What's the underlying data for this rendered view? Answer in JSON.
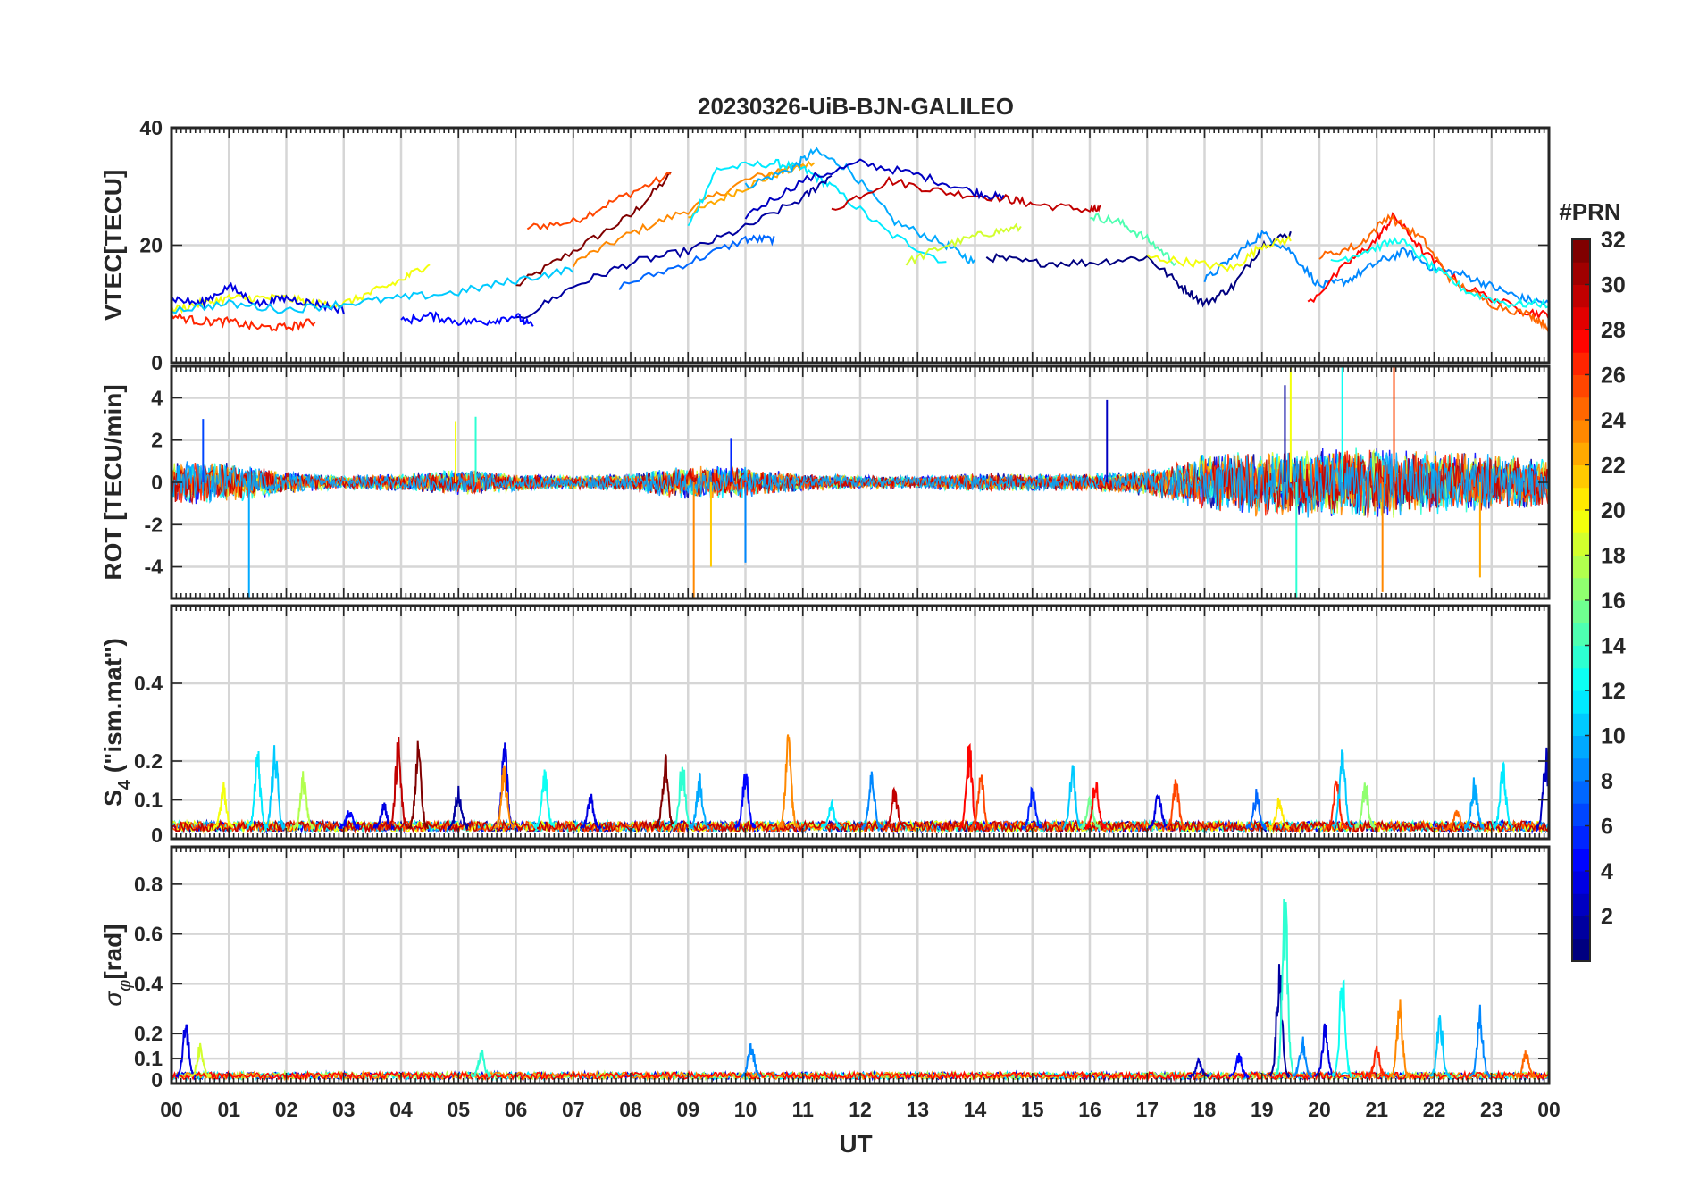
{
  "figure": {
    "title": "20230326-UiB-BJN-GALILEO",
    "xlabel": "UT",
    "x_tick_labels": [
      "00",
      "01",
      "02",
      "03",
      "04",
      "05",
      "06",
      "07",
      "08",
      "09",
      "10",
      "11",
      "12",
      "13",
      "14",
      "15",
      "16",
      "17",
      "18",
      "19",
      "20",
      "21",
      "22",
      "23",
      "00"
    ]
  },
  "colorbar": {
    "title": "#PRN",
    "colormap": "jet",
    "levels": 32,
    "range": [
      1,
      32
    ],
    "tick_values": [
      2,
      4,
      6,
      8,
      10,
      12,
      14,
      16,
      18,
      20,
      22,
      24,
      26,
      28,
      30,
      32
    ],
    "tick_labels": [
      "2",
      "4",
      "6",
      "8",
      "10",
      "12",
      "14",
      "16",
      "18",
      "20",
      "22",
      "24",
      "26",
      "28",
      "30",
      "32"
    ]
  },
  "chart_data": [
    {
      "type": "line",
      "panel": "vtec",
      "ylabel": "VTEC[TECU]",
      "xlim": [
        0,
        24
      ],
      "ylim": [
        0,
        40
      ],
      "yticks": [
        0,
        20,
        40
      ],
      "ytick_labels": [
        "0",
        "20",
        "40"
      ],
      "grid": true,
      "series": [
        {
          "prn": 32,
          "x": [
            6.0,
            7.0,
            8.0,
            8.7
          ],
          "y": [
            13,
            19,
            25,
            32
          ]
        },
        {
          "prn": 26,
          "x": [
            6.2,
            7.0,
            7.8,
            8.7
          ],
          "y": [
            23,
            24,
            28,
            32
          ]
        },
        {
          "prn": 24,
          "x": [
            7.0,
            8.0,
            9.0,
            10.0,
            11.0
          ],
          "y": [
            17,
            22,
            26,
            31,
            34
          ]
        },
        {
          "prn": 23,
          "x": [
            9.0,
            9.8,
            10.5,
            11.2
          ],
          "y": [
            25,
            29,
            32,
            34
          ]
        },
        {
          "prn": 12,
          "x": [
            9.0,
            9.5,
            10.5,
            11.0,
            11.5,
            12.5,
            13.5
          ],
          "y": [
            23,
            33,
            34,
            33,
            30,
            22,
            17
          ]
        },
        {
          "prn": 10,
          "x": [
            10.0,
            10.8,
            11.2,
            11.8,
            12.6,
            13.5,
            14.0
          ],
          "y": [
            30,
            33,
            36,
            33,
            24,
            20,
            17
          ]
        },
        {
          "prn": 30,
          "x": [
            11.5,
            12.5,
            13.5,
            14.5,
            15.0,
            16.0,
            16.2
          ],
          "y": [
            26,
            31,
            29,
            28,
            27,
            26,
            26
          ]
        },
        {
          "prn": 3,
          "x": [
            10.0,
            11.0,
            12.0,
            13.0,
            14.0,
            14.5
          ],
          "y": [
            25,
            31,
            34,
            32,
            29,
            28
          ]
        },
        {
          "prn": 8,
          "x": [
            7.8,
            9.0,
            10.0,
            10.5
          ],
          "y": [
            13,
            17,
            21,
            21
          ]
        },
        {
          "prn": 2,
          "x": [
            6.0,
            7.0,
            8.0,
            9.0,
            10.0,
            11.0,
            11.5
          ],
          "y": [
            7,
            13,
            17,
            19,
            23,
            28,
            32
          ]
        },
        {
          "prn": 19,
          "x": [
            12.8,
            13.5,
            14.2,
            14.8
          ],
          "y": [
            17,
            20,
            22,
            23
          ]
        },
        {
          "prn": 1,
          "x": [
            14.2,
            15.0,
            16.0,
            17.0,
            17.6,
            18.0,
            18.5,
            19.0,
            19.5
          ],
          "y": [
            18,
            17,
            17,
            18,
            13,
            10,
            13,
            20,
            22
          ]
        },
        {
          "prn": 15,
          "x": [
            16.0,
            16.5,
            17.0,
            17.5
          ],
          "y": [
            25,
            24,
            21,
            17
          ]
        },
        {
          "prn": 9,
          "x": [
            18.0,
            18.5,
            19.0,
            19.5,
            20.0,
            20.5,
            21.0,
            21.5,
            22.0,
            22.5,
            23.0,
            23.5,
            24.0
          ],
          "y": [
            14,
            18,
            22,
            19,
            13,
            14,
            17,
            19,
            16,
            15,
            13,
            11,
            10
          ]
        },
        {
          "prn": 20,
          "x": [
            17.0,
            17.8,
            18.5,
            19.0,
            19.5
          ],
          "y": [
            18,
            17,
            16,
            20,
            21
          ]
        },
        {
          "prn": 28,
          "x": [
            19.8,
            20.5,
            21.0,
            21.3,
            21.8,
            22.5,
            23.5,
            24.0
          ],
          "y": [
            10,
            17,
            21,
            25,
            19,
            13,
            9,
            8
          ]
        },
        {
          "prn": 25,
          "x": [
            20.0,
            20.7,
            21.2,
            21.8,
            22.3,
            23.0,
            23.7,
            24.0
          ],
          "y": [
            18,
            20,
            25,
            21,
            14,
            10,
            8,
            6
          ]
        },
        {
          "prn": 13,
          "x": [
            20.2,
            20.8,
            21.4,
            22.0,
            22.6,
            23.3,
            24.0
          ],
          "y": [
            17,
            19,
            21,
            16,
            12,
            10,
            10
          ]
        },
        {
          "prn": 20,
          "x": [
            0.0,
            0.5,
            1.0,
            1.5,
            2.0,
            2.5,
            3.0,
            3.5,
            4.0,
            4.5
          ],
          "y": [
            9,
            10,
            11,
            11,
            11,
            10,
            10,
            12,
            14,
            17
          ]
        },
        {
          "prn": 4,
          "x": [
            0.0,
            0.5,
            1.0,
            1.5,
            2.0,
            2.5,
            3.0
          ],
          "y": [
            11,
            10,
            13,
            10,
            11,
            10,
            9
          ]
        },
        {
          "prn": 27,
          "x": [
            0.0,
            0.5,
            1.0,
            1.5,
            2.0,
            2.5
          ],
          "y": [
            8,
            7,
            7,
            6,
            6,
            7
          ]
        },
        {
          "prn": 11,
          "x": [
            0.0,
            1.0,
            2.0,
            3.0,
            4.0,
            5.0,
            6.0,
            7.0
          ],
          "y": [
            9,
            10,
            9,
            10,
            11,
            12,
            14,
            16
          ]
        },
        {
          "prn": 5,
          "x": [
            4.0,
            4.5,
            5.0,
            5.5,
            6.0,
            6.3
          ],
          "y": [
            7,
            8,
            7,
            7,
            8,
            6
          ]
        }
      ]
    },
    {
      "type": "line",
      "panel": "rot",
      "ylabel": "ROT [TECU/min]",
      "xlim": [
        0,
        24
      ],
      "ylim": [
        -5.5,
        5.5
      ],
      "yticks": [
        -4,
        -2,
        0,
        2,
        4
      ],
      "ytick_labels": [
        "-4",
        "-2",
        "0",
        "2",
        "4"
      ],
      "grid": true,
      "background_spread": [
        {
          "x": [
            0.0,
            1.0,
            2.0,
            3.0,
            4.0,
            5.0,
            6.0,
            7.0,
            8.0,
            9.0,
            10.0,
            11.0,
            12.0,
            13.0,
            14.0,
            15.0,
            16.0,
            17.0,
            17.5,
            18.0,
            19.0,
            20.0,
            21.0,
            22.0,
            23.0,
            24.0
          ],
          "y": [
            1.0,
            0.9,
            0.5,
            0.3,
            0.4,
            0.6,
            0.4,
            0.3,
            0.4,
            0.8,
            0.7,
            0.4,
            0.3,
            0.3,
            0.4,
            0.4,
            0.4,
            0.6,
            0.9,
            1.3,
            1.5,
            1.6,
            1.6,
            1.5,
            1.3,
            1.1
          ]
        }
      ],
      "spikes": [
        {
          "prn": 7,
          "x": 0.55,
          "y": 3.0
        },
        {
          "prn": 10,
          "x": 1.35,
          "y": -5.5
        },
        {
          "prn": 20,
          "x": 4.95,
          "y": 2.9
        },
        {
          "prn": 14,
          "x": 5.3,
          "y": 3.1
        },
        {
          "prn": 24,
          "x": 9.1,
          "y": -5.5
        },
        {
          "prn": 22,
          "x": 9.4,
          "y": -4.0
        },
        {
          "prn": 6,
          "x": 9.75,
          "y": 2.1
        },
        {
          "prn": 9,
          "x": 10.0,
          "y": -3.8
        },
        {
          "prn": 3,
          "x": 16.3,
          "y": 3.9
        },
        {
          "prn": 2,
          "x": 19.4,
          "y": 4.6
        },
        {
          "prn": 20,
          "x": 19.5,
          "y": 5.5
        },
        {
          "prn": 14,
          "x": 19.6,
          "y": -5.5
        },
        {
          "prn": 13,
          "x": 20.4,
          "y": 5.5
        },
        {
          "prn": 24,
          "x": 21.1,
          "y": -5.2
        },
        {
          "prn": 26,
          "x": 21.3,
          "y": 5.5
        },
        {
          "prn": 23,
          "x": 22.8,
          "y": -4.5
        }
      ]
    },
    {
      "type": "line",
      "panel": "s4",
      "ylabel": "S4 (\"ism.mat\")",
      "ylabel_main": "S",
      "ylabel_sub": "4",
      "ylabel_rest": " (\"ism.mat\")",
      "xlim": [
        0,
        24
      ],
      "ylim": [
        0,
        0.6
      ],
      "yticks": [
        0,
        0.1,
        0.2,
        0.4
      ],
      "ytick_labels": [
        "0",
        "0.1",
        "0.2",
        "0.4"
      ],
      "grid": true,
      "baseline": 0.03,
      "bursts": [
        {
          "prn": 11,
          "x": 1.8,
          "y": 0.27
        },
        {
          "prn": 12,
          "x": 1.5,
          "y": 0.24
        },
        {
          "prn": 20,
          "x": 0.9,
          "y": 0.15
        },
        {
          "prn": 18,
          "x": 2.3,
          "y": 0.18
        },
        {
          "prn": 5,
          "x": 3.1,
          "y": 0.08
        },
        {
          "prn": 4,
          "x": 3.7,
          "y": 0.1
        },
        {
          "prn": 30,
          "x": 3.95,
          "y": 0.27
        },
        {
          "prn": 32,
          "x": 4.3,
          "y": 0.27
        },
        {
          "prn": 2,
          "x": 5.0,
          "y": 0.14
        },
        {
          "prn": 4,
          "x": 5.8,
          "y": 0.27
        },
        {
          "prn": 24,
          "x": 5.8,
          "y": 0.2
        },
        {
          "prn": 13,
          "x": 6.5,
          "y": 0.2
        },
        {
          "prn": 4,
          "x": 7.3,
          "y": 0.12
        },
        {
          "prn": 32,
          "x": 8.6,
          "y": 0.23
        },
        {
          "prn": 14,
          "x": 8.9,
          "y": 0.22
        },
        {
          "prn": 10,
          "x": 9.2,
          "y": 0.18
        },
        {
          "prn": 5,
          "x": 10.0,
          "y": 0.2
        },
        {
          "prn": 24,
          "x": 10.75,
          "y": 0.28
        },
        {
          "prn": 12,
          "x": 11.5,
          "y": 0.1
        },
        {
          "prn": 9,
          "x": 12.2,
          "y": 0.18
        },
        {
          "prn": 30,
          "x": 12.6,
          "y": 0.14
        },
        {
          "prn": 28,
          "x": 13.9,
          "y": 0.27
        },
        {
          "prn": 26,
          "x": 14.1,
          "y": 0.2
        },
        {
          "prn": 6,
          "x": 15.0,
          "y": 0.14
        },
        {
          "prn": 11,
          "x": 15.7,
          "y": 0.21
        },
        {
          "prn": 16,
          "x": 16.0,
          "y": 0.12
        },
        {
          "prn": 28,
          "x": 16.1,
          "y": 0.17
        },
        {
          "prn": 4,
          "x": 17.2,
          "y": 0.14
        },
        {
          "prn": 26,
          "x": 17.5,
          "y": 0.16
        },
        {
          "prn": 8,
          "x": 18.9,
          "y": 0.13
        },
        {
          "prn": 21,
          "x": 19.3,
          "y": 0.11
        },
        {
          "prn": 27,
          "x": 20.3,
          "y": 0.17
        },
        {
          "prn": 11,
          "x": 20.4,
          "y": 0.26
        },
        {
          "prn": 17,
          "x": 20.8,
          "y": 0.15
        },
        {
          "prn": 25,
          "x": 22.4,
          "y": 0.08
        },
        {
          "prn": 10,
          "x": 22.7,
          "y": 0.16
        },
        {
          "prn": 12,
          "x": 23.2,
          "y": 0.2
        },
        {
          "prn": 3,
          "x": 23.95,
          "y": 0.24
        }
      ]
    },
    {
      "type": "line",
      "panel": "sigma_phi",
      "ylabel": "σφ[rad]",
      "ylabel_main": "σ",
      "ylabel_sub": "φ",
      "ylabel_rest": "[rad]",
      "xlim": [
        0,
        24
      ],
      "ylim": [
        0,
        0.95
      ],
      "yticks": [
        0,
        0.1,
        0.2,
        0.4,
        0.6,
        0.8
      ],
      "ytick_labels": [
        "0",
        "0.1",
        "0.2",
        "0.4",
        "0.6",
        "0.8"
      ],
      "grid": true,
      "baseline": 0.03,
      "bursts": [
        {
          "prn": 4,
          "x": 0.25,
          "y": 0.28
        },
        {
          "prn": 19,
          "x": 0.5,
          "y": 0.17
        },
        {
          "prn": 14,
          "x": 5.4,
          "y": 0.14
        },
        {
          "prn": 9,
          "x": 10.1,
          "y": 0.19
        },
        {
          "prn": 3,
          "x": 17.9,
          "y": 0.1
        },
        {
          "prn": 5,
          "x": 18.6,
          "y": 0.13
        },
        {
          "prn": 2,
          "x": 19.3,
          "y": 0.5
        },
        {
          "prn": 14,
          "x": 19.4,
          "y": 0.85
        },
        {
          "prn": 9,
          "x": 19.7,
          "y": 0.2
        },
        {
          "prn": 4,
          "x": 20.1,
          "y": 0.25
        },
        {
          "prn": 13,
          "x": 20.4,
          "y": 0.5
        },
        {
          "prn": 24,
          "x": 21.4,
          "y": 0.35
        },
        {
          "prn": 11,
          "x": 22.1,
          "y": 0.3
        },
        {
          "prn": 9,
          "x": 22.8,
          "y": 0.32
        },
        {
          "prn": 27,
          "x": 21.0,
          "y": 0.15
        },
        {
          "prn": 25,
          "x": 23.6,
          "y": 0.14
        }
      ]
    }
  ]
}
